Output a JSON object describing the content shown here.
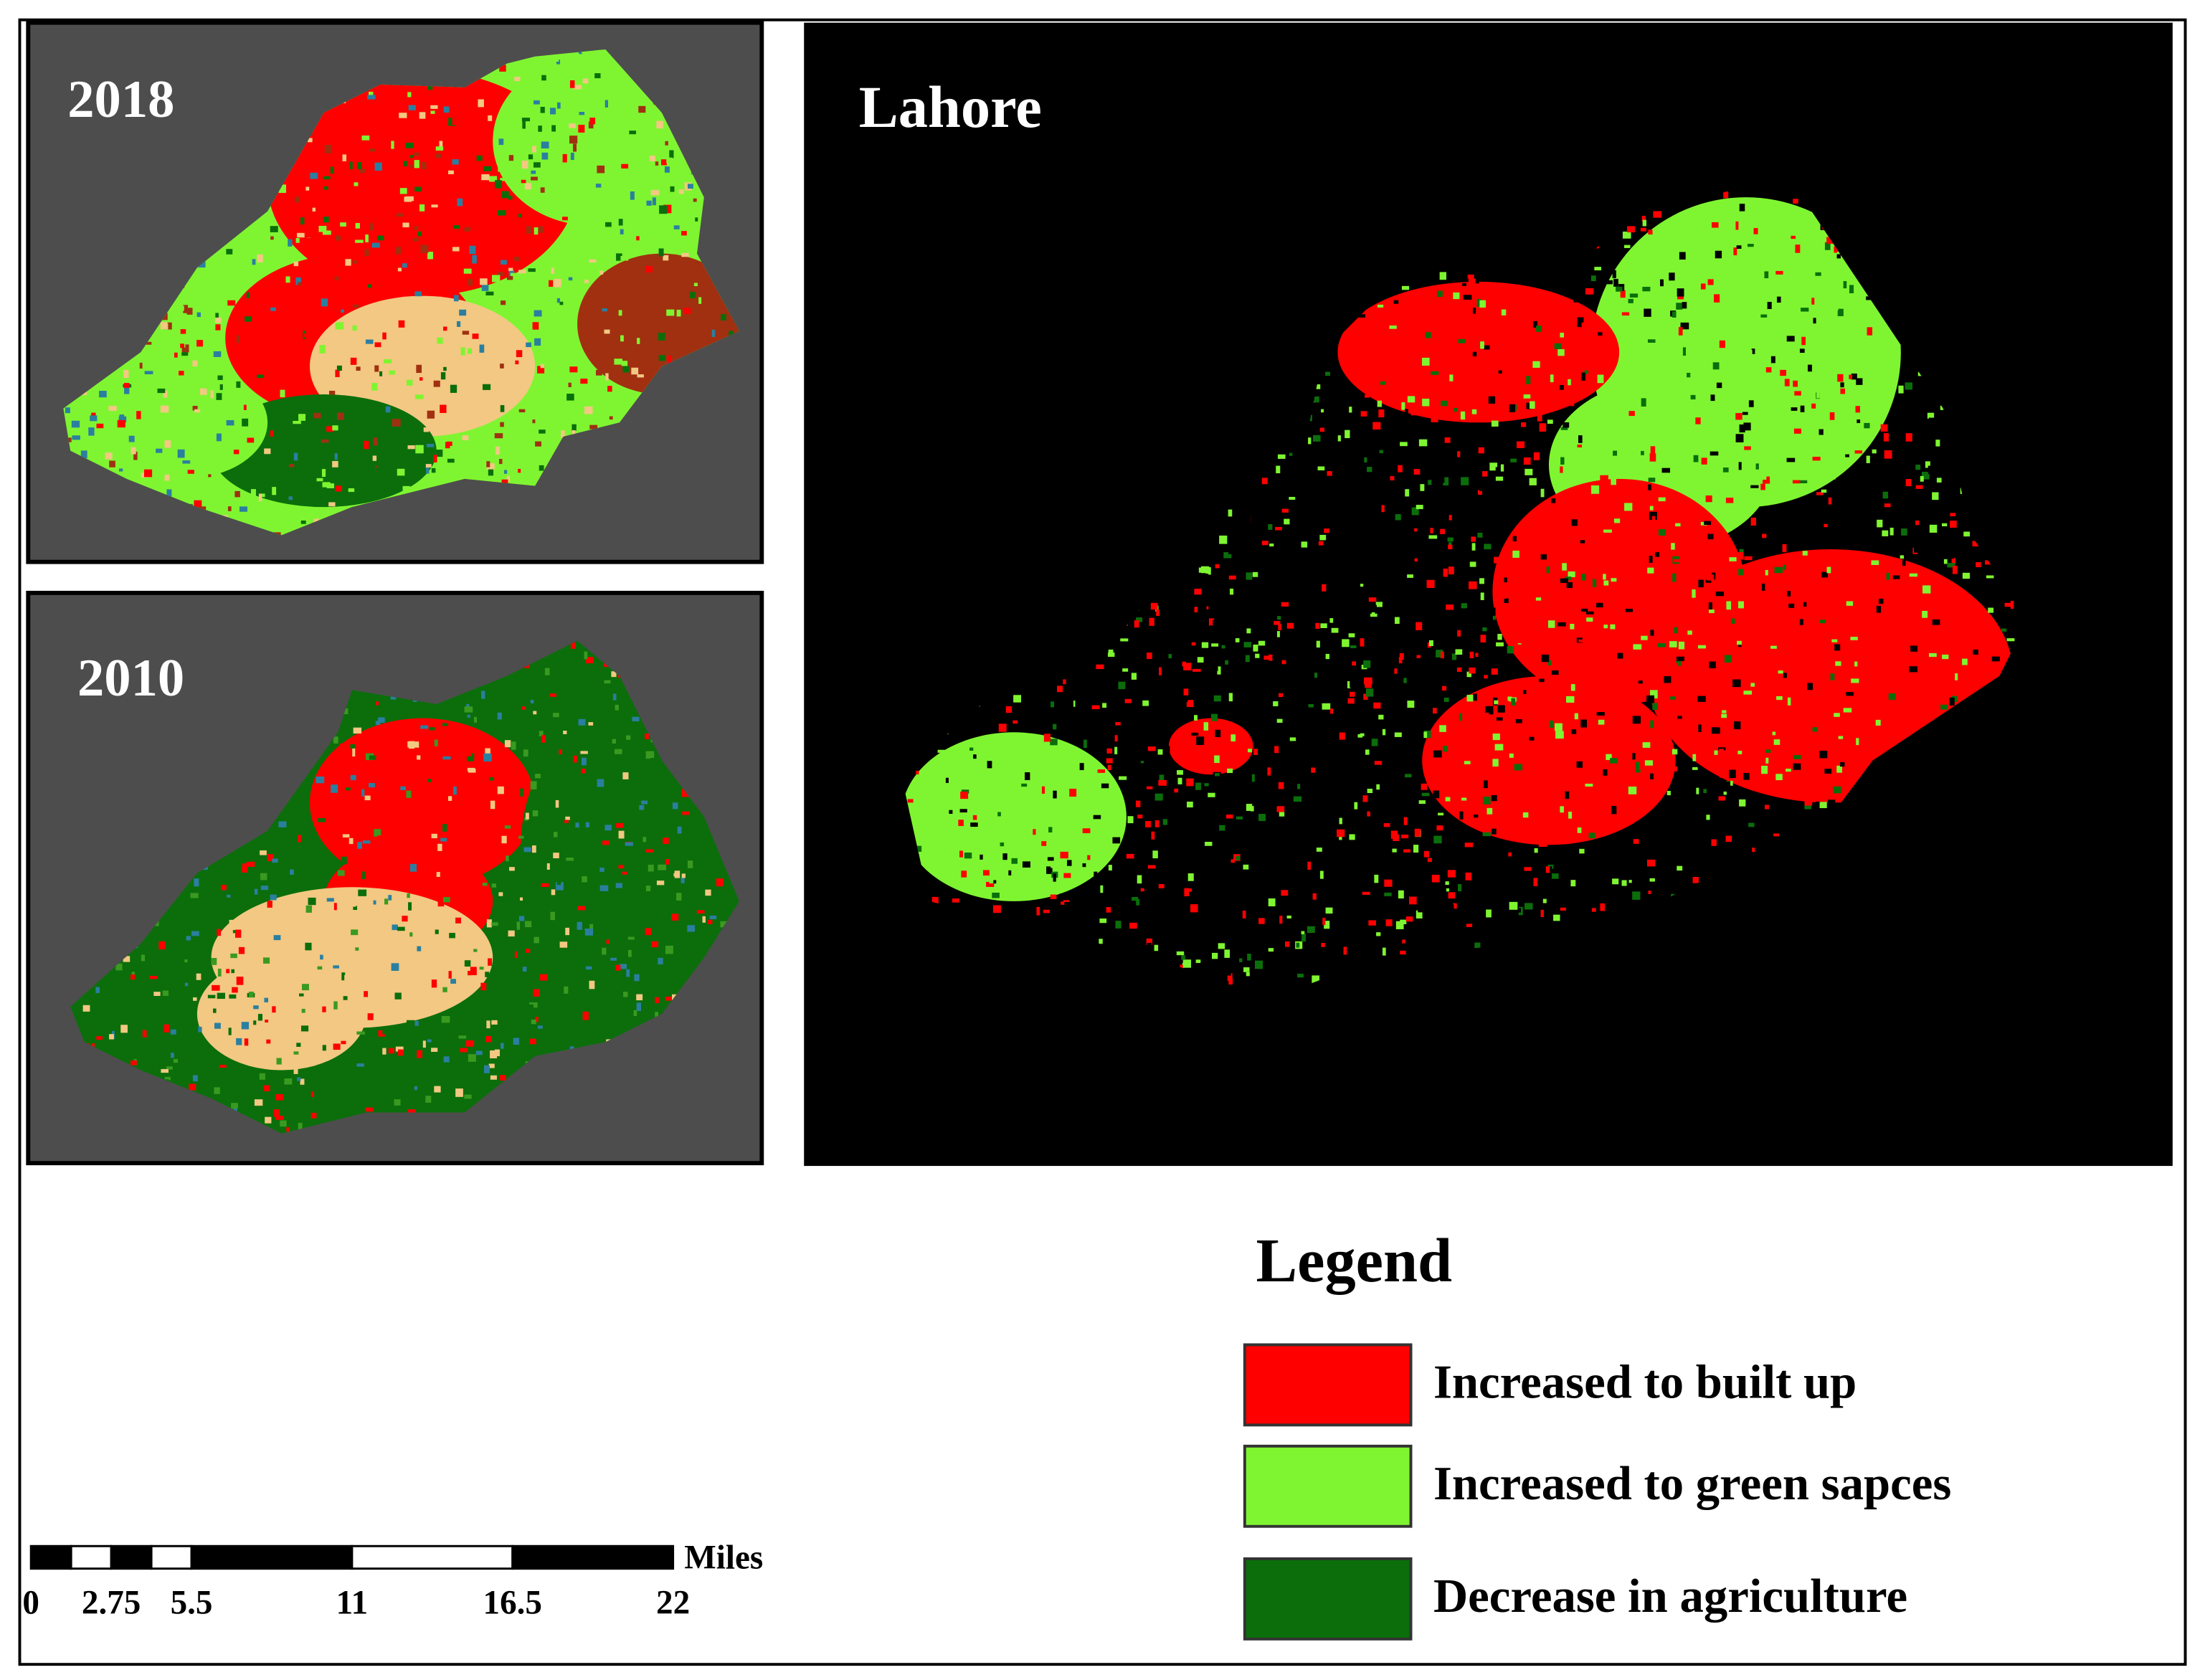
{
  "maps": {
    "panel_2018": {
      "label": "2018"
    },
    "panel_2010": {
      "label": "2010"
    },
    "panel_main": {
      "label": "Lahore"
    }
  },
  "legend": {
    "title": "Legend",
    "items": [
      {
        "label": "Increased to built up",
        "color": "#fe0000"
      },
      {
        "label": "Increased to green sapces",
        "color": "#7ff531"
      },
      {
        "label": "Decrease in agriculture",
        "color": "#0b6e0b"
      }
    ]
  },
  "scale_bar": {
    "unit": "Miles",
    "ticks": [
      0,
      2.75,
      5.5,
      11,
      16.5,
      22
    ]
  }
}
